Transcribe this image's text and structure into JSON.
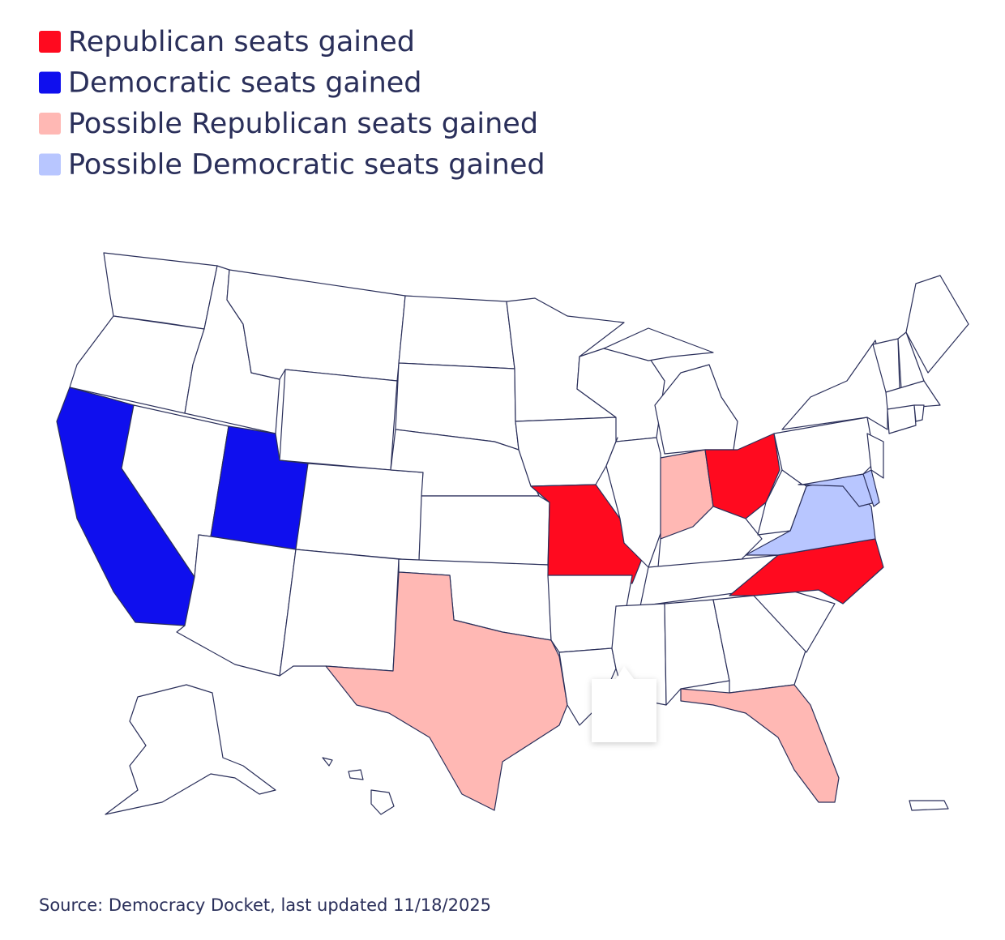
{
  "legend": [
    {
      "label": "Republican seats gained",
      "color": "#ff0a1f"
    },
    {
      "label": "Democratic seats gained",
      "color": "#0f0fee"
    },
    {
      "label": "Possible Republican seats gained",
      "color": "#ffb8b4"
    },
    {
      "label": "Possible Democratic seats gained",
      "color": "#b8c6ff"
    }
  ],
  "source": "Source: Democracy Docket, last updated 11/18/2025"
}
